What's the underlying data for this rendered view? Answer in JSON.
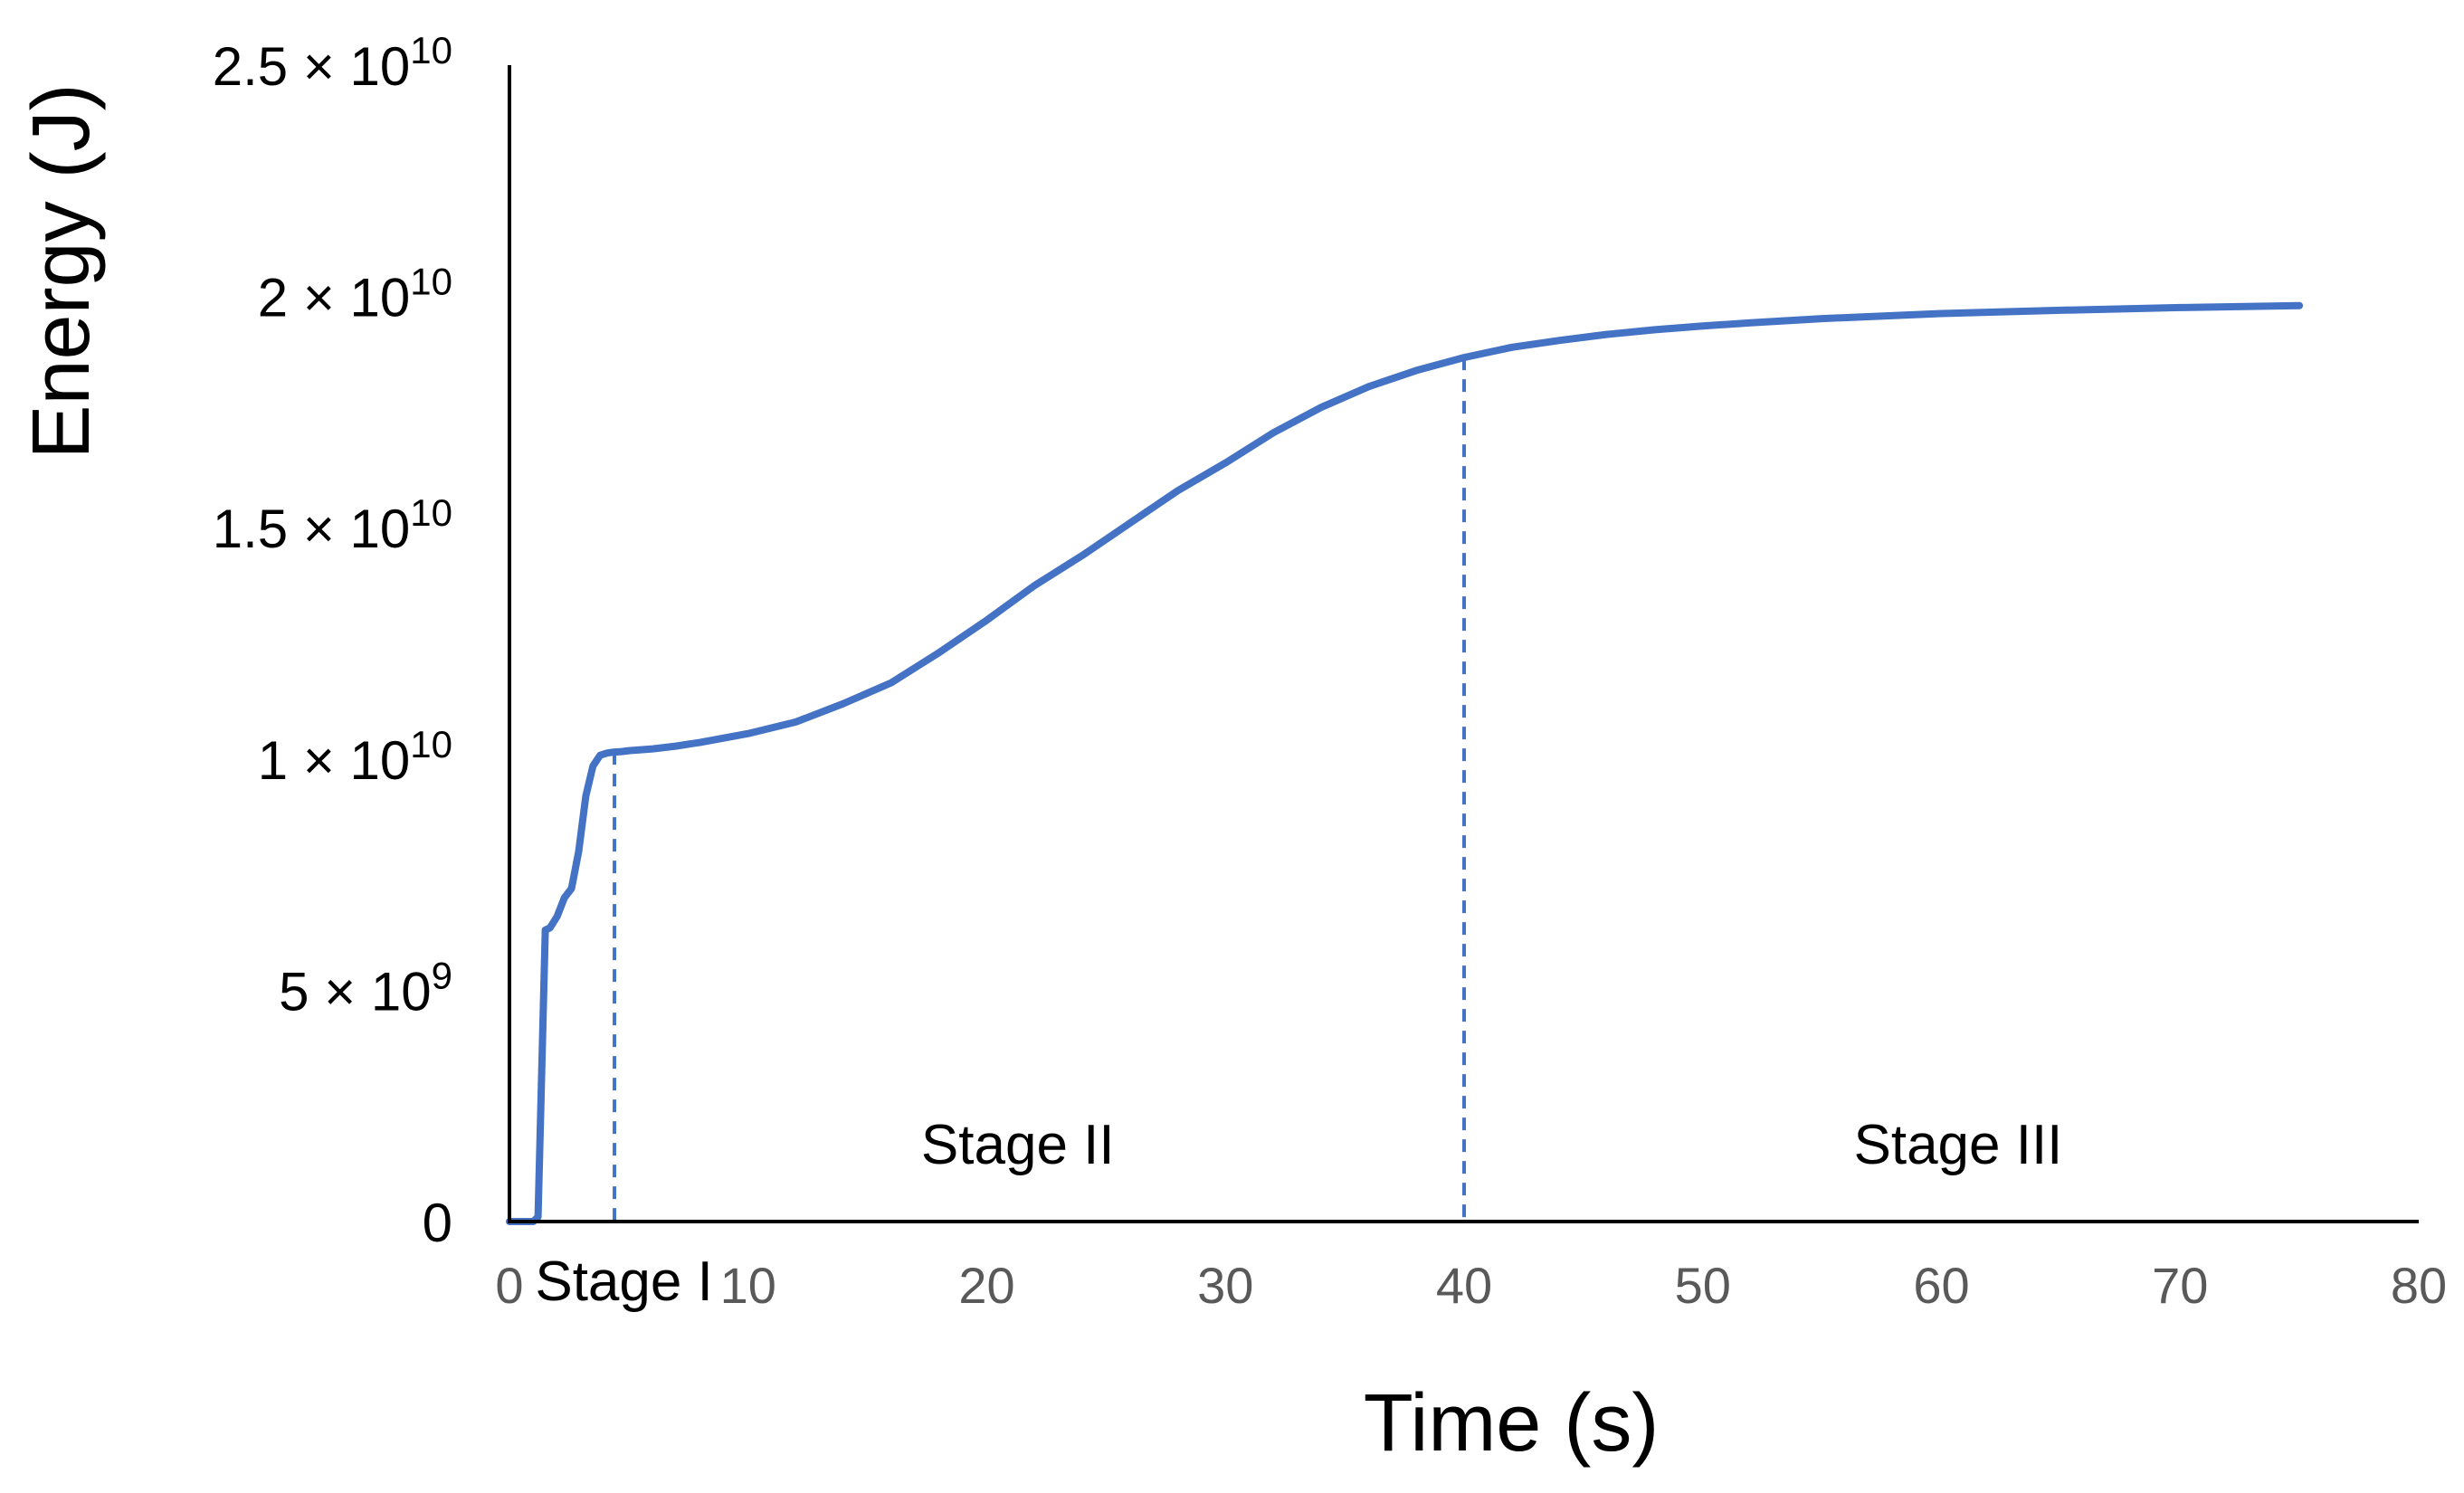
{
  "chart_data": {
    "type": "line",
    "title": "",
    "xlabel": "Time (s)",
    "ylabel": "Energy (J)",
    "xlim": [
      0,
      80
    ],
    "ylim": [
      0,
      25000000000
    ],
    "grid": false,
    "x_ticks": [
      0,
      10,
      20,
      30,
      40,
      50,
      60,
      70,
      80
    ],
    "x_tick_labels": [
      "0",
      "10",
      "20",
      "30",
      "40",
      "50",
      "60",
      "70",
      "80"
    ],
    "y_ticks": [
      {
        "value": 0,
        "mantissa": "0",
        "times": "",
        "base": "",
        "exponent": ""
      },
      {
        "value": 5000000000,
        "mantissa": "5",
        "times": "×",
        "base": "10",
        "exponent": "9"
      },
      {
        "value": 10000000000,
        "mantissa": "1",
        "times": "×",
        "base": "10",
        "exponent": "10"
      },
      {
        "value": 15000000000,
        "mantissa": "1.5",
        "times": "×",
        "base": "10",
        "exponent": "10"
      },
      {
        "value": 20000000000,
        "mantissa": "2",
        "times": "×",
        "base": "10",
        "exponent": "10"
      },
      {
        "value": 25000000000,
        "mantissa": "2.5",
        "times": "×",
        "base": "10",
        "exponent": "10"
      }
    ],
    "series": [
      {
        "color": "#4472C4",
        "x": [
          0,
          1.0,
          1.2,
          1.5,
          1.7,
          2.0,
          2.3,
          2.6,
          2.9,
          3.2,
          3.5,
          3.8,
          4.1,
          4.4,
          4.7,
          5,
          6,
          7,
          8,
          10,
          12,
          14,
          16,
          18,
          20,
          22,
          24,
          26,
          28,
          30,
          32,
          34,
          36,
          38,
          40,
          42,
          44,
          46,
          48,
          50,
          52,
          55,
          60,
          65,
          70,
          75
        ],
        "y": [
          0,
          0,
          100000000,
          6300000000,
          6350000000,
          6600000000,
          7000000000,
          7200000000,
          8000000000,
          9200000000,
          9850000000,
          10080000000,
          10130000000,
          10150000000,
          10160000000,
          10180000000,
          10220000000,
          10280000000,
          10360000000,
          10550000000,
          10800000000,
          11200000000,
          11650000000,
          12300000000,
          13000000000,
          13750000000,
          14400000000,
          15100000000,
          15800000000,
          16400000000,
          17050000000,
          17600000000,
          18050000000,
          18400000000,
          18680000000,
          18900000000,
          19050000000,
          19180000000,
          19280000000,
          19360000000,
          19430000000,
          19520000000,
          19630000000,
          19700000000,
          19760000000,
          19800000000
        ]
      }
    ],
    "markers": [
      {
        "x": 4.4,
        "y_top": 10150000000,
        "style": "dashed",
        "color": "#4472C4"
      },
      {
        "x": 40,
        "y_top": 18680000000,
        "style": "dashed",
        "color": "#4472C4"
      }
    ],
    "annotations": [
      {
        "text": "Stage I",
        "x": 4.8,
        "y": -1700000000
      },
      {
        "text": "Stage II",
        "x": 21.3,
        "y": 1250000000
      },
      {
        "text": "Stage III",
        "x": 60.7,
        "y": 1250000000
      }
    ]
  }
}
